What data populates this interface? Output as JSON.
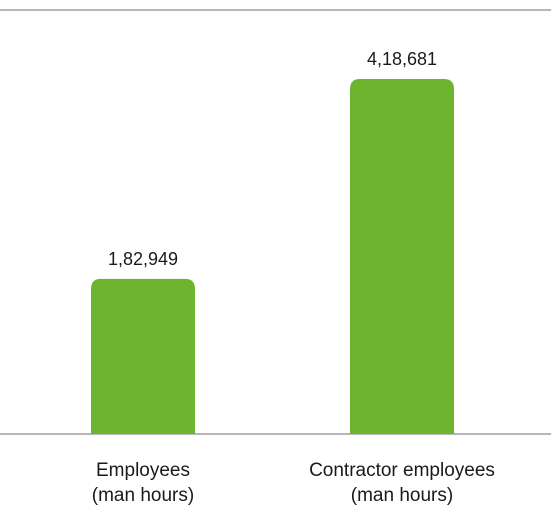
{
  "chart_data": {
    "type": "bar",
    "categories": [
      [
        "Employees",
        "(man hours)"
      ],
      [
        "Contractor employees",
        "(man hours)"
      ]
    ],
    "values": [
      182949,
      418681
    ],
    "value_labels": [
      "1,82,949",
      "4,18,681"
    ],
    "ylim": [
      0,
      500000
    ],
    "grid": false,
    "legend": "none",
    "colors": {
      "bar": "#6db52e",
      "axis": "#8c8c8c",
      "text": "#1a1a1a"
    }
  }
}
